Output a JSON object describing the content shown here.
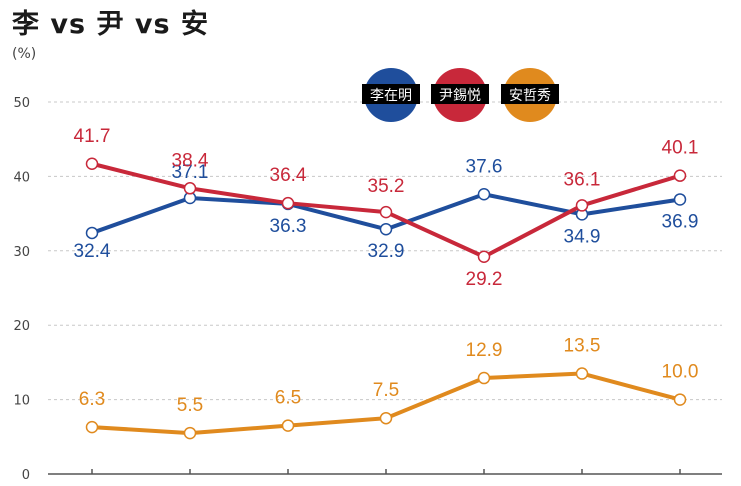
{
  "chart_data": {
    "type": "line",
    "title": "李 vs 尹 vs 安",
    "ylabel": "(%)",
    "ylim": [
      0,
      50
    ],
    "yticks": [
      0,
      10,
      20,
      30,
      40,
      50
    ],
    "grid": true,
    "legend_position": "top-center",
    "x": [
      1,
      2,
      3,
      4,
      5,
      6,
      7
    ],
    "series": [
      {
        "name": "李在明",
        "color": "#1f4e9c",
        "values": [
          32.4,
          37.1,
          36.3,
          32.9,
          37.6,
          34.9,
          36.9
        ]
      },
      {
        "name": "尹錫悦",
        "color": "#c8283a",
        "values": [
          41.7,
          38.4,
          36.4,
          35.2,
          29.2,
          36.1,
          40.1
        ]
      },
      {
        "name": "安哲秀",
        "color": "#e08a1e",
        "values": [
          6.3,
          5.5,
          6.5,
          7.5,
          12.9,
          13.5,
          10.0
        ]
      }
    ],
    "labels": {
      "李在明": [
        "32.4",
        "37.1",
        "36.3",
        "32.9",
        "37.6",
        "34.9",
        "36.9"
      ],
      "尹錫悦": [
        "41.7",
        "38.4",
        "36.4",
        "35.2",
        "29.2",
        "36.1",
        "40.1"
      ],
      "安哲秀": [
        "6.3",
        "5.5",
        "6.5",
        "7.5",
        "12.9",
        "13.5",
        "10.0"
      ]
    }
  }
}
